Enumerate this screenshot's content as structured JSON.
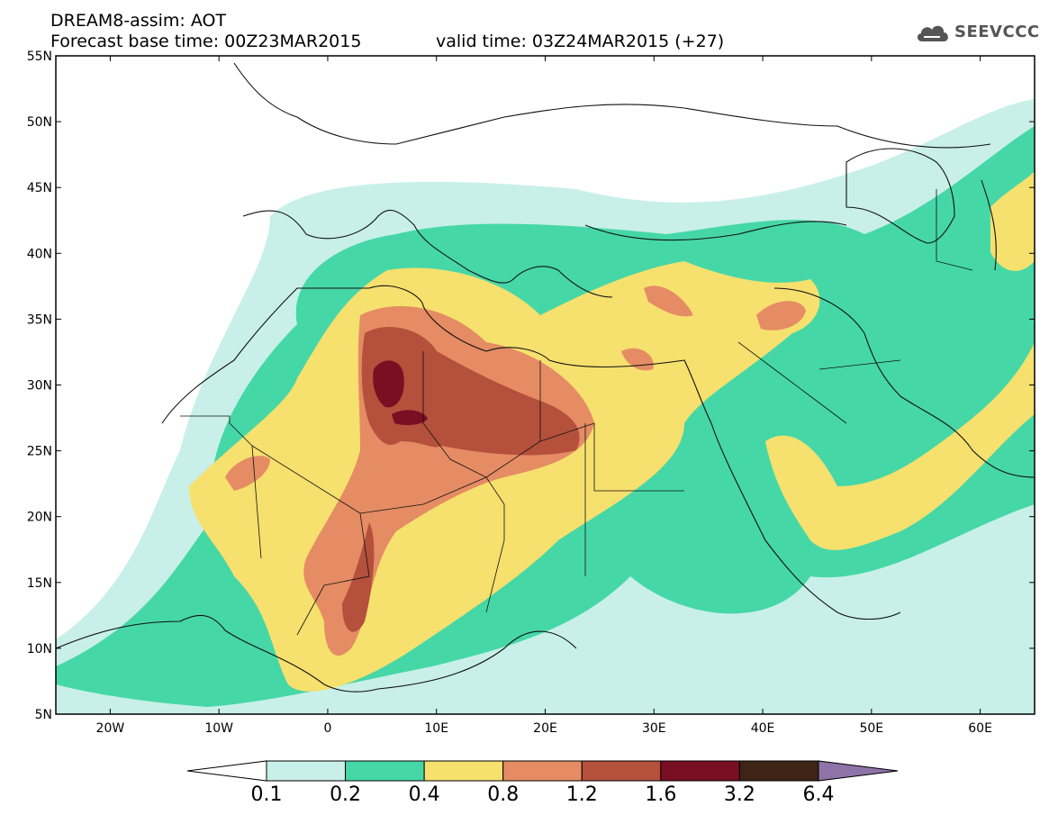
{
  "header": {
    "title": "DREAM8-assim: AOT",
    "base_time": "Forecast base time: 00Z23MAR2015",
    "valid_time": "valid time: 03Z24MAR2015 (+27)"
  },
  "logo": {
    "text": "SEEVCCC",
    "icon": "cloud-icon"
  },
  "map": {
    "lat_labels": [
      "55N",
      "50N",
      "45N",
      "40N",
      "35N",
      "30N",
      "25N",
      "20N",
      "15N",
      "10N",
      "5N"
    ],
    "lon_labels": [
      "20W",
      "10W",
      "0",
      "10E",
      "20E",
      "30E",
      "40E",
      "50E",
      "60E"
    ],
    "lon_range": [
      -25,
      65
    ],
    "lat_range": [
      5,
      55
    ]
  },
  "colorbar": {
    "labels": [
      "0.1",
      "0.2",
      "0.4",
      "0.8",
      "1.2",
      "1.6",
      "3.2",
      "6.4"
    ],
    "colors": [
      "#ffffff",
      "#c8f0e8",
      "#46d7a7",
      "#f6e06e",
      "#e58c64",
      "#b4503c",
      "#7a0e22",
      "#3d2414",
      "#8e73a8"
    ]
  },
  "palette": {
    "c1": "#c8f0e8",
    "c2": "#46d7a7",
    "c3": "#f6e06e",
    "c4": "#e58c64",
    "c5": "#b4503c",
    "c6": "#7a0e22"
  }
}
